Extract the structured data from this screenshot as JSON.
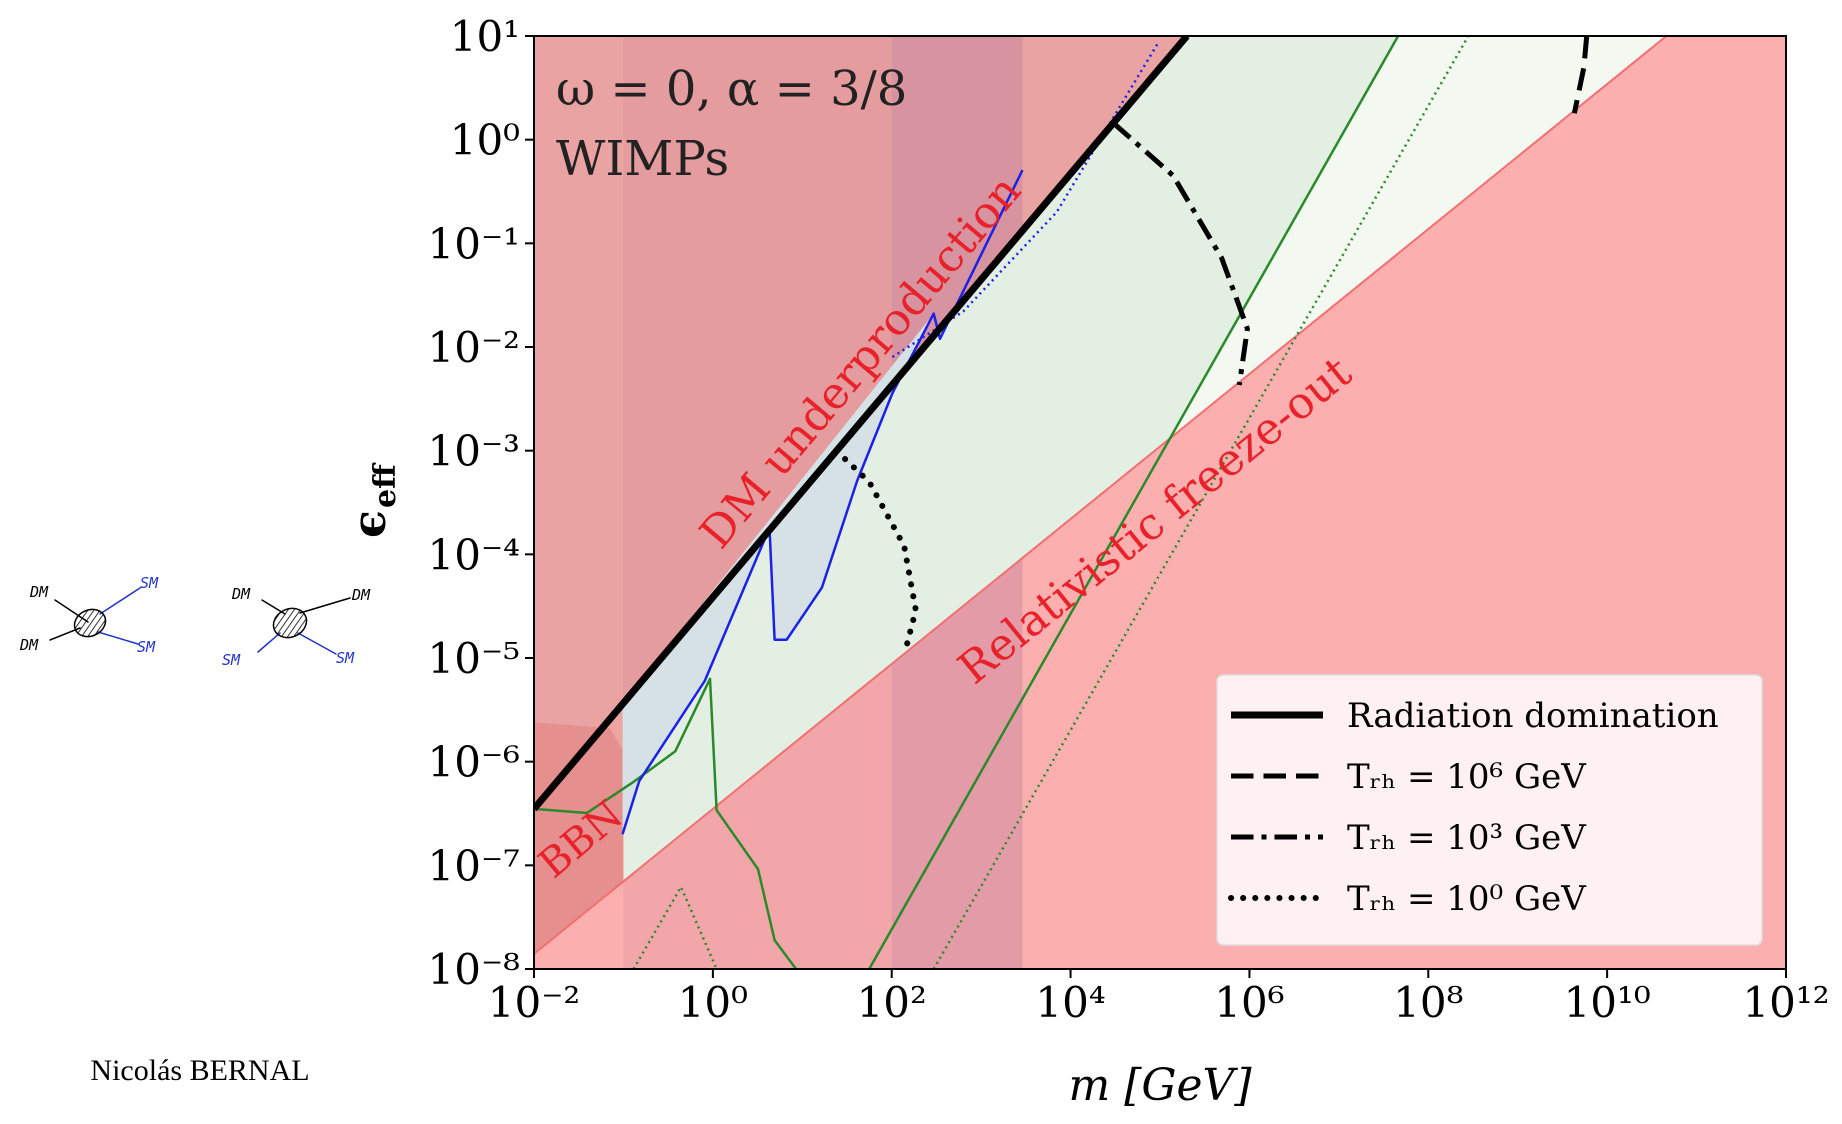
{
  "chart_data": {
    "type": "line",
    "annotations": [
      "ω = 0, α = 3/8",
      "WIMPs"
    ],
    "xlabel": "m [GeV]",
    "ylabel": "ϵ",
    "ylabel_subscript": "eff",
    "xscale": "log",
    "yscale": "log",
    "xlim": [
      0.01,
      1000000000000.0
    ],
    "ylim": [
      1e-08,
      10
    ],
    "xticks": [
      {
        "value": 0.01,
        "label": "10⁻²"
      },
      {
        "value": 1,
        "label": "10⁰"
      },
      {
        "value": 100,
        "label": "10²"
      },
      {
        "value": 10000,
        "label": "10⁴"
      },
      {
        "value": 1000000.0,
        "label": "10⁶"
      },
      {
        "value": 100000000.0,
        "label": "10⁸"
      },
      {
        "value": 10000000000.0,
        "label": "10¹⁰"
      },
      {
        "value": 1000000000000.0,
        "label": "10¹²"
      }
    ],
    "yticks": [
      {
        "value": 1e-08,
        "label": "10⁻⁸"
      },
      {
        "value": 1e-07,
        "label": "10⁻⁷"
      },
      {
        "value": 1e-06,
        "label": "10⁻⁶"
      },
      {
        "value": 1e-05,
        "label": "10⁻⁵"
      },
      {
        "value": 0.0001,
        "label": "10⁻⁴"
      },
      {
        "value": 0.001,
        "label": "10⁻³"
      },
      {
        "value": 0.01,
        "label": "10⁻²"
      },
      {
        "value": 0.1,
        "label": "10⁻¹"
      },
      {
        "value": 1,
        "label": "10⁰"
      },
      {
        "value": 10,
        "label": "10¹"
      }
    ],
    "legend": "lower right",
    "regions": [
      {
        "label": "DM underproduction",
        "color": "#eaa3a3",
        "x": [
          0.01,
          200000,
          0.01
        ],
        "y": [
          3.5e-07,
          10,
          10
        ]
      },
      {
        "label": "Relativistic freeze-out",
        "color": "#fbafaf",
        "x": [
          0.01,
          46000000000.0,
          1000000000000.0,
          1000000000000.0,
          0.01
        ],
        "y": [
          1.4e-08,
          10,
          10,
          1e-08,
          1e-08
        ]
      },
      {
        "color": "#eda5a0",
        "x": [
          0.01,
          0.1,
          0.1,
          0.01
        ],
        "y": [
          3.5e-07,
          3.7e-06,
          7e-08,
          1.4e-08
        ]
      },
      {
        "label": "BBN",
        "color": "#e68f8f",
        "x": [
          0.01,
          0.071,
          0.12,
          0.166,
          0.13,
          0.01
        ],
        "y": [
          2.4e-06,
          2.1e-06,
          9.5e-07,
          2.6e-07,
          8.1e-08,
          1.4e-08
        ]
      }
    ],
    "bands": [
      {
        "color": "rgba(190,110,130,0.12)",
        "x": [
          0.1,
          2900
        ]
      },
      {
        "color": "rgba(150,100,170,0.16)",
        "x": [
          100,
          2900
        ]
      }
    ],
    "fills": [
      {
        "color": "#e4efe3",
        "x": [
          0.1,
          200000,
          46000000.0,
          130000,
          0.1
        ],
        "y": [
          3.7e-06,
          10,
          10,
          0.00135,
          7e-08
        ]
      },
      {
        "color": "#f3f8f1",
        "x": [
          46000000.0,
          46000000000.0,
          130000
        ],
        "y": [
          10,
          10,
          0.00135
        ]
      },
      {
        "color": "#d6e1e6",
        "x": [
          0.098,
          0.15,
          0.81,
          4.3,
          4.9,
          6.7,
          16.6,
          41,
          102,
          295,
          0.098
        ],
        "y": [
          2e-07,
          6.5e-07,
          6e-06,
          0.00018,
          1.5e-05,
          1.5e-05,
          4.8e-05,
          0.00051,
          0.0036,
          0.021,
          3.6e-06
        ]
      }
    ],
    "series": [
      {
        "name": "Radiation domination",
        "color": "#000000",
        "style": "solid",
        "linewidth": 7,
        "x": [
          0.01,
          200000
        ],
        "values": [
          3.5e-07,
          10
        ]
      },
      {
        "name": "Tᵣₕ = 10⁶ GeV",
        "color": "#000000",
        "style": "dashed",
        "linewidth": 5,
        "x": [
          5900000000.0,
          5500000000.0,
          4300000000.0
        ],
        "values": [
          10,
          5,
          1.8
        ]
      },
      {
        "name": "Tᵣₕ = 10³ GeV",
        "color": "#000000",
        "style": "dashdot",
        "linewidth": 5,
        "x": [
          30000,
          140000,
          490000,
          950000,
          770000
        ],
        "values": [
          1.45,
          0.45,
          0.072,
          0.015,
          0.0043
        ]
      },
      {
        "name": "Tᵣₕ = 10⁰ GeV",
        "color": "#000000",
        "style": "dotted",
        "linewidth": 6,
        "x": [
          24,
          56,
          138,
          186,
          138
        ],
        "values": [
          0.001,
          0.0005,
          0.00012,
          2.9e-05,
          1.07e-05
        ]
      },
      {
        "color": "#2a8a2a",
        "style": "solid",
        "linewidth": 2.5,
        "x": [
          56,
          46000000.0
        ],
        "values": [
          1e-08,
          10
        ]
      },
      {
        "color": "#2a8a2a",
        "style": "dotted",
        "linewidth": 2.5,
        "x": [
          295,
          280000000.0
        ],
        "values": [
          1e-08,
          10
        ]
      },
      {
        "color": "#2a8a2a",
        "style": "solid",
        "linewidth": 2.5,
        "x": [
          0.01,
          0.039,
          0.13,
          0.38,
          0.93,
          1.1,
          3.2,
          4.9,
          8.5
        ],
        "values": [
          3.5e-07,
          3.2e-07,
          6.4e-07,
          1.26e-06,
          6.3e-06,
          3.4e-07,
          9.2e-08,
          1.9e-08,
          1e-08
        ]
      },
      {
        "color": "#2a8a2a",
        "style": "dotted",
        "linewidth": 2.5,
        "x": [
          0.13,
          0.44,
          1.1
        ],
        "values": [
          1e-08,
          6.2e-08,
          1e-08
        ]
      },
      {
        "color": "#1a22e6",
        "style": "solid",
        "linewidth": 2.5,
        "x": [
          0.098,
          0.15,
          0.81,
          4.3,
          4.9,
          6.7,
          16.6,
          41,
          102,
          295,
          347,
          2900
        ],
        "values": [
          2e-07,
          6.5e-07,
          6e-06,
          0.00018,
          1.5e-05,
          1.5e-05,
          4.8e-05,
          0.00051,
          0.0036,
          0.021,
          0.012,
          0.51
        ]
      },
      {
        "color": "#1a22e6",
        "style": "dotted",
        "linewidth": 2.5,
        "x": [
          102,
          630,
          7000,
          93000
        ],
        "values": [
          0.008,
          0.022,
          0.2,
          8.3
        ]
      }
    ]
  },
  "diagrams": [
    {
      "labels": [
        "DM",
        "DM",
        "SM",
        "SM"
      ]
    },
    {
      "labels": [
        "DM",
        "DM",
        "SM",
        "SM"
      ]
    }
  ],
  "footer": "Nicolás BERNAL"
}
